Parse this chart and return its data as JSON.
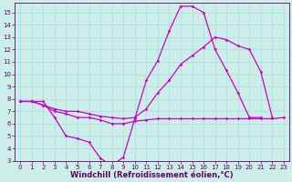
{
  "background_color": "#cceee8",
  "grid_color": "#aadddd",
  "line_color": "#cc00cc",
  "xlim": [
    -0.5,
    23.5
  ],
  "ylim": [
    3,
    15.8
  ],
  "xlabel": "Windchill (Refroidissement éolien,°C)",
  "xticks": [
    0,
    1,
    2,
    3,
    4,
    5,
    6,
    7,
    8,
    9,
    10,
    11,
    12,
    13,
    14,
    15,
    16,
    17,
    18,
    19,
    20,
    21,
    22,
    23
  ],
  "yticks": [
    3,
    4,
    5,
    6,
    7,
    8,
    9,
    10,
    11,
    12,
    13,
    14,
    15
  ],
  "line1_x": [
    0,
    1,
    2,
    3,
    4,
    5,
    6,
    7,
    8,
    9,
    10,
    11,
    12,
    13,
    14,
    15,
    16,
    17,
    18,
    19,
    20,
    21
  ],
  "line1_y": [
    7.8,
    7.8,
    7.8,
    6.5,
    5.0,
    4.8,
    4.5,
    3.2,
    2.6,
    3.3,
    6.4,
    9.5,
    11.1,
    13.5,
    15.5,
    15.5,
    15.0,
    12.0,
    10.3,
    8.5,
    6.5,
    6.5
  ],
  "line2_x": [
    0,
    1,
    2,
    3,
    4,
    5,
    6,
    7,
    8,
    9,
    10,
    11,
    12,
    13,
    14,
    15,
    16,
    17,
    18,
    19,
    20,
    21,
    22
  ],
  "line2_y": [
    7.8,
    7.8,
    7.5,
    7.2,
    7.0,
    7.0,
    6.8,
    6.6,
    6.5,
    6.4,
    6.5,
    7.2,
    8.5,
    9.5,
    10.8,
    11.5,
    12.2,
    13.0,
    12.8,
    12.3,
    12.0,
    10.2,
    6.5
  ],
  "line3_x": [
    0,
    1,
    2,
    3,
    4,
    5,
    6,
    7,
    8,
    9,
    10,
    11,
    12,
    13,
    14,
    15,
    16,
    17,
    18,
    19,
    20,
    21,
    22,
    23
  ],
  "line3_y": [
    7.8,
    7.8,
    7.5,
    7.0,
    6.8,
    6.5,
    6.5,
    6.3,
    6.0,
    6.0,
    6.2,
    6.3,
    6.4,
    6.4,
    6.4,
    6.4,
    6.4,
    6.4,
    6.4,
    6.4,
    6.4,
    6.4,
    6.4,
    6.5
  ],
  "font_color": "#660066",
  "tick_font_size": 5.0,
  "label_font_size": 6.0,
  "lw": 0.9,
  "ms": 1.8
}
